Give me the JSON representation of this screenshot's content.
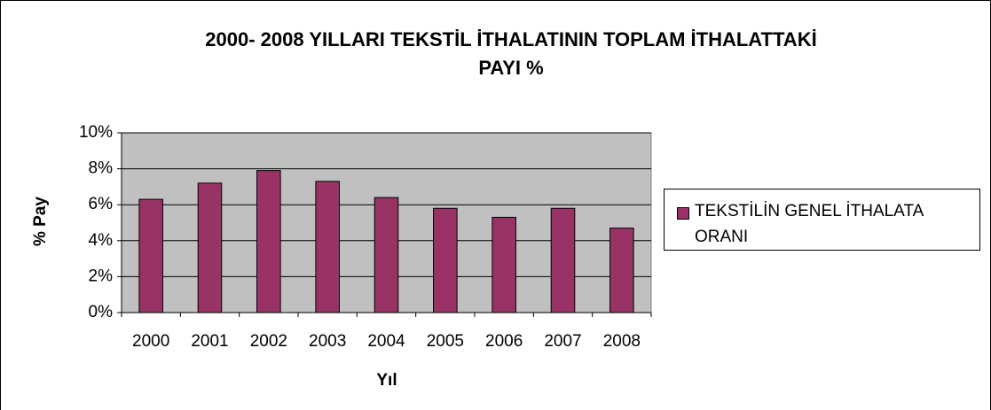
{
  "chart_data": {
    "type": "bar",
    "title": [
      "2000- 2008 YILLARI TEKSTİL İTHALATININ TOPLAM İTHALATTAKİ",
      "PAYI %"
    ],
    "x_label": "Yıl",
    "y_label": "% Pay",
    "categories": [
      "2000",
      "2001",
      "2002",
      "2003",
      "2004",
      "2005",
      "2006",
      "2007",
      "2008"
    ],
    "series": [
      {
        "name": "TEKSTİLİN GENEL İTHALATA ORANI",
        "color": "#993366",
        "values": [
          6.3,
          7.2,
          7.9,
          7.3,
          6.4,
          5.8,
          5.3,
          5.8,
          4.7
        ]
      }
    ],
    "ylim": [
      0,
      10
    ],
    "yticks": [
      {
        "value": 0,
        "label": "0%"
      },
      {
        "value": 2,
        "label": "2%"
      },
      {
        "value": 4,
        "label": "4%"
      },
      {
        "value": 6,
        "label": "6%"
      },
      {
        "value": 8,
        "label": "8%"
      },
      {
        "value": 10,
        "label": "10%"
      }
    ],
    "grid": true,
    "plot_background": "#c0c0c0",
    "legend": "right"
  }
}
